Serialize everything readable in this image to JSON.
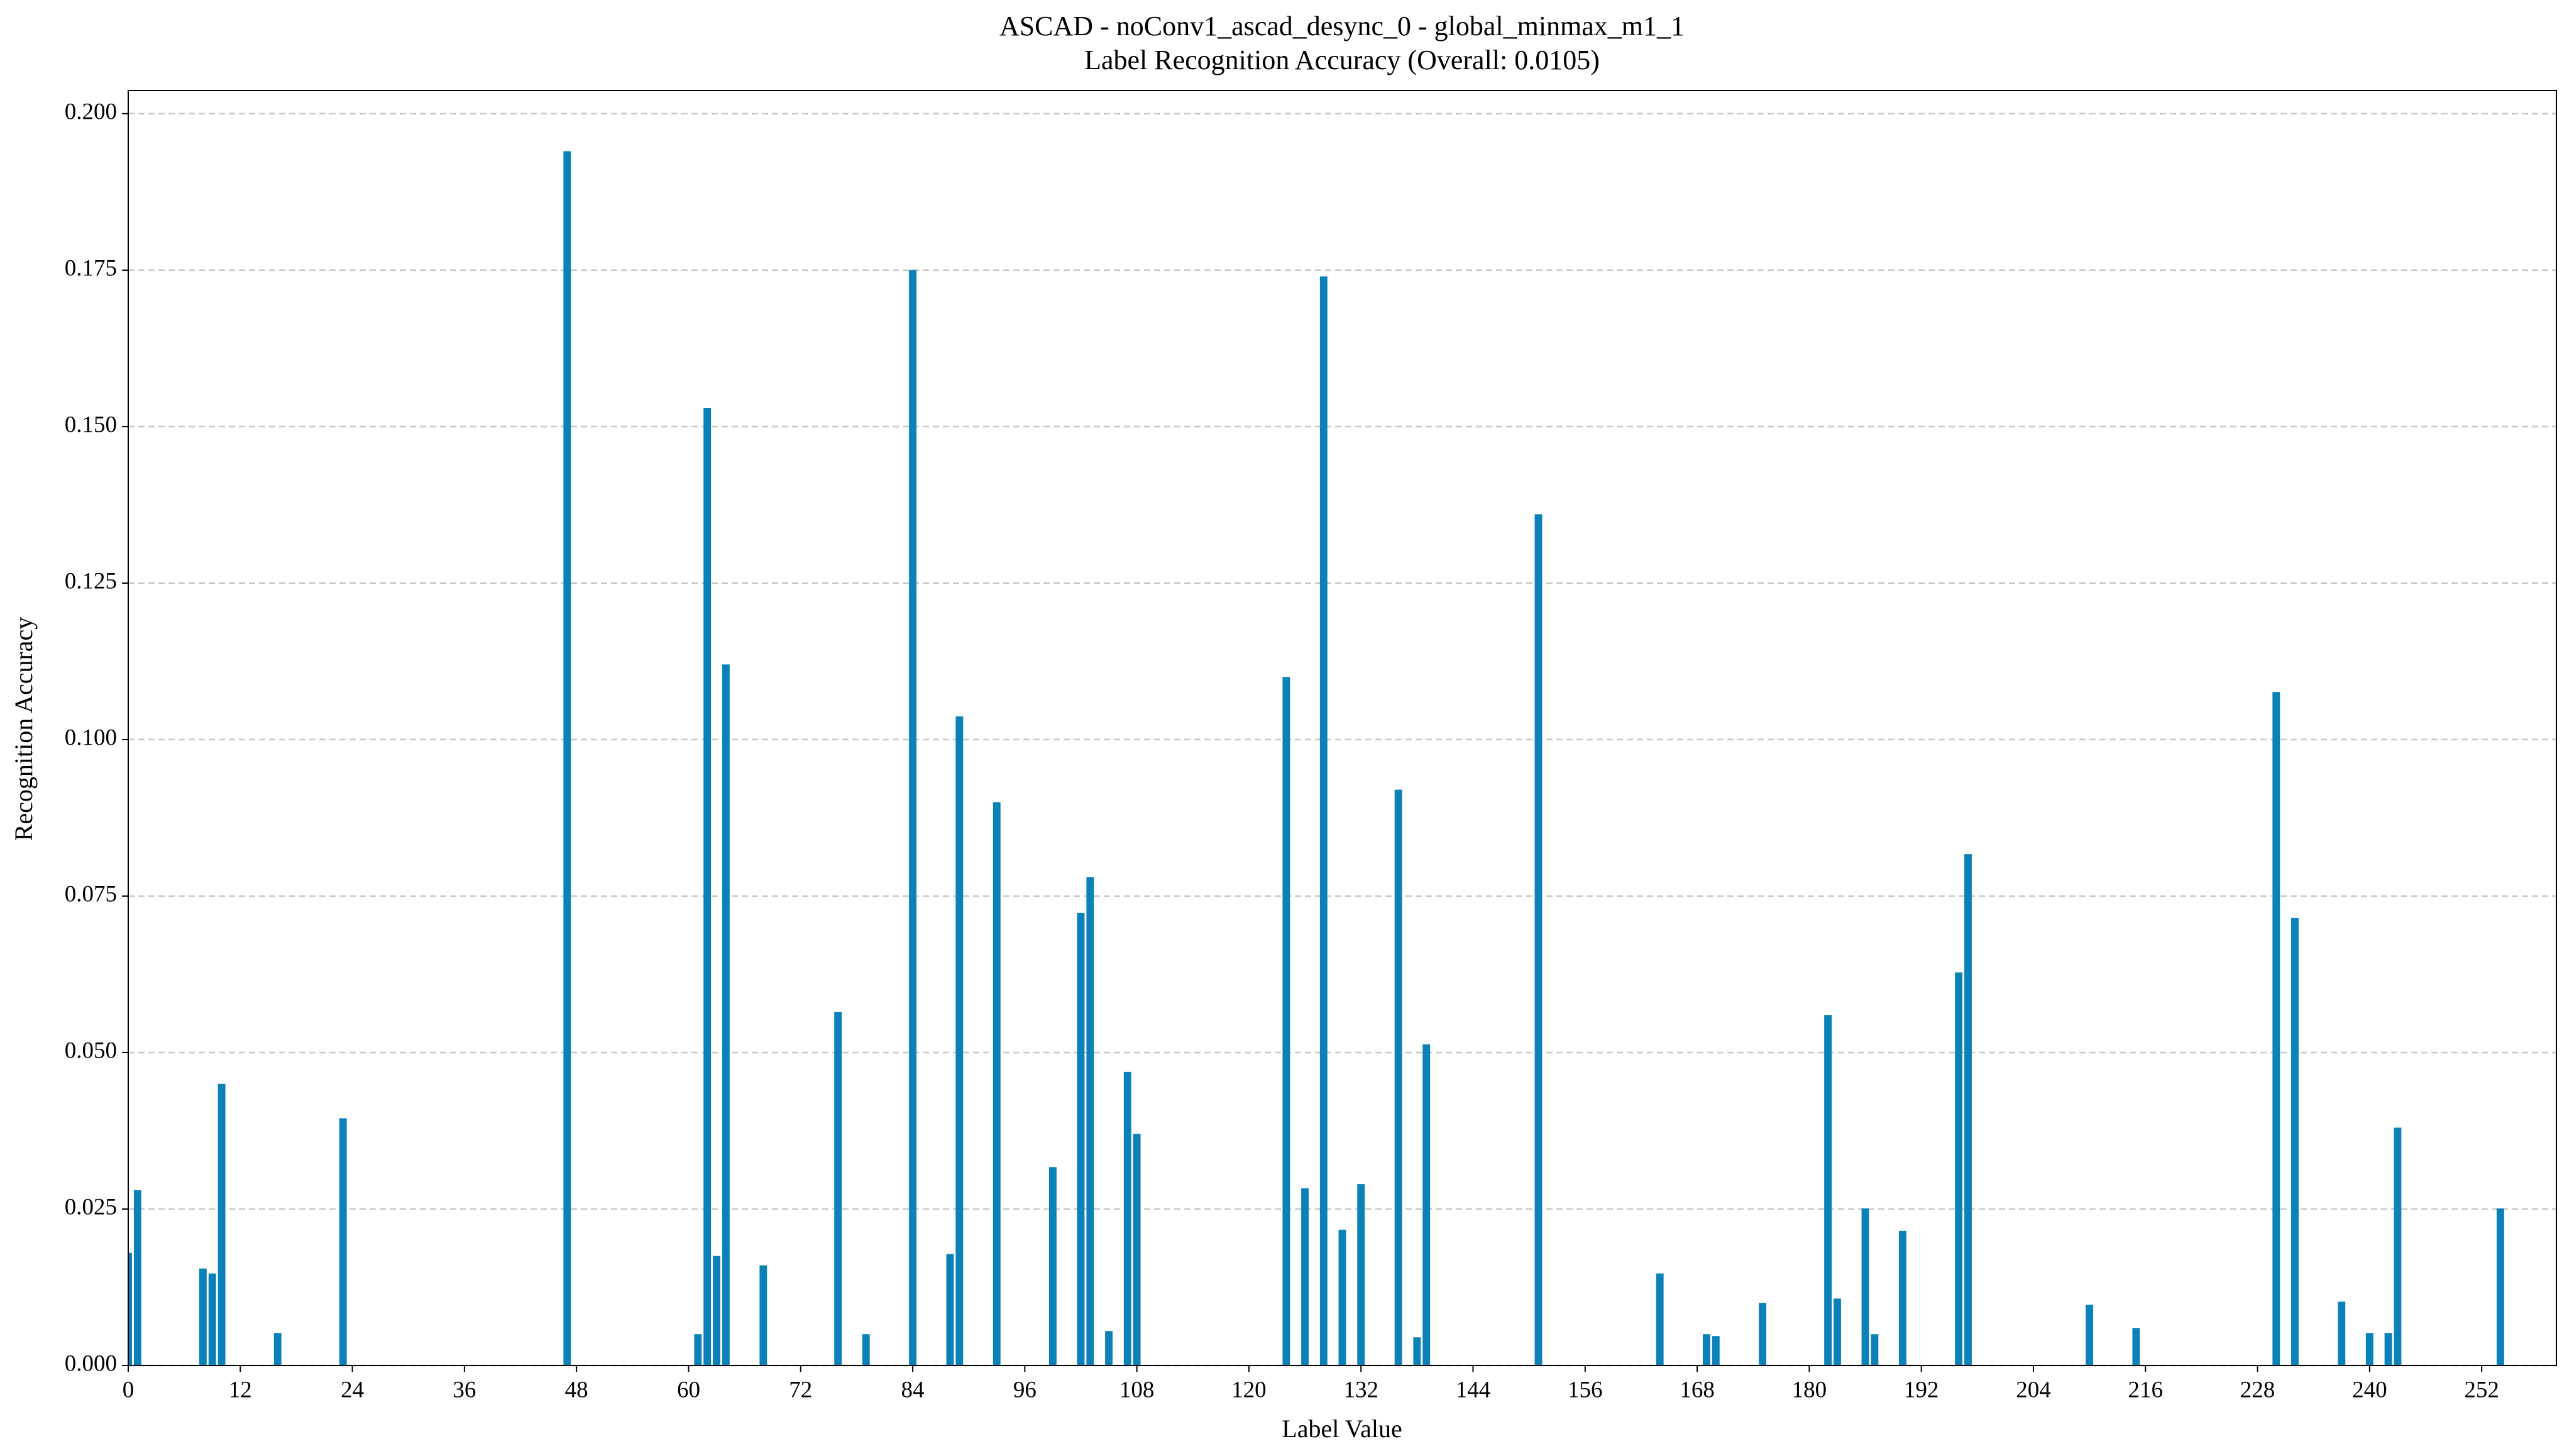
{
  "chart_data": {
    "type": "bar",
    "title": "ASCAD - noConv1_ascad_desync_0 - global_minmax_m1_1",
    "subtitle": "Label Recognition Accuracy (Overall: 0.0105)",
    "xlabel": "Label Value",
    "ylabel": "Recognition Accuracy",
    "x": [
      0,
      1,
      8,
      9,
      10,
      16,
      23,
      47,
      61,
      62,
      63,
      64,
      68,
      76,
      79,
      84,
      88,
      89,
      93,
      99,
      102,
      103,
      105,
      107,
      108,
      124,
      126,
      128,
      130,
      132,
      136,
      138,
      139,
      151,
      164,
      169,
      170,
      175,
      182,
      183,
      186,
      187,
      190,
      196,
      197,
      210,
      215,
      230,
      232,
      237,
      240,
      242,
      243,
      254
    ],
    "values": [
      0.018,
      0.028,
      0.0155,
      0.0147,
      0.045,
      0.0052,
      0.0395,
      0.194,
      0.005,
      0.153,
      0.0175,
      0.112,
      0.016,
      0.0565,
      0.005,
      0.175,
      0.0178,
      0.1037,
      0.09,
      0.0317,
      0.0723,
      0.078,
      0.0055,
      0.0469,
      0.037,
      0.11,
      0.0283,
      0.174,
      0.0217,
      0.029,
      0.092,
      0.0045,
      0.0513,
      0.136,
      0.0147,
      0.005,
      0.0047,
      0.01,
      0.056,
      0.0107,
      0.0251,
      0.005,
      0.0215,
      0.0628,
      0.0817,
      0.0097,
      0.006,
      0.1076,
      0.0715,
      0.0102,
      0.0052,
      0.0052,
      0.038,
      0.0251
    ],
    "color": "#0a81b8",
    "xlim": [
      0,
      260
    ],
    "xticks": [
      0,
      12,
      24,
      36,
      48,
      60,
      72,
      84,
      96,
      108,
      120,
      132,
      144,
      156,
      168,
      180,
      192,
      204,
      216,
      228,
      240,
      252
    ],
    "ylim": [
      0,
      0.2037
    ],
    "yticks": [
      {
        "value": 0,
        "label": "0.000"
      },
      {
        "value": 0.025,
        "label": "0.025"
      },
      {
        "value": 0.05,
        "label": "0.050"
      },
      {
        "value": 0.075,
        "label": "0.075"
      },
      {
        "value": 0.1,
        "label": "0.100"
      },
      {
        "value": 0.125,
        "label": "0.125"
      },
      {
        "value": 0.15,
        "label": "0.150"
      },
      {
        "value": 0.175,
        "label": "0.175"
      },
      {
        "value": 0.2,
        "label": "0.200"
      }
    ],
    "grid": true
  }
}
